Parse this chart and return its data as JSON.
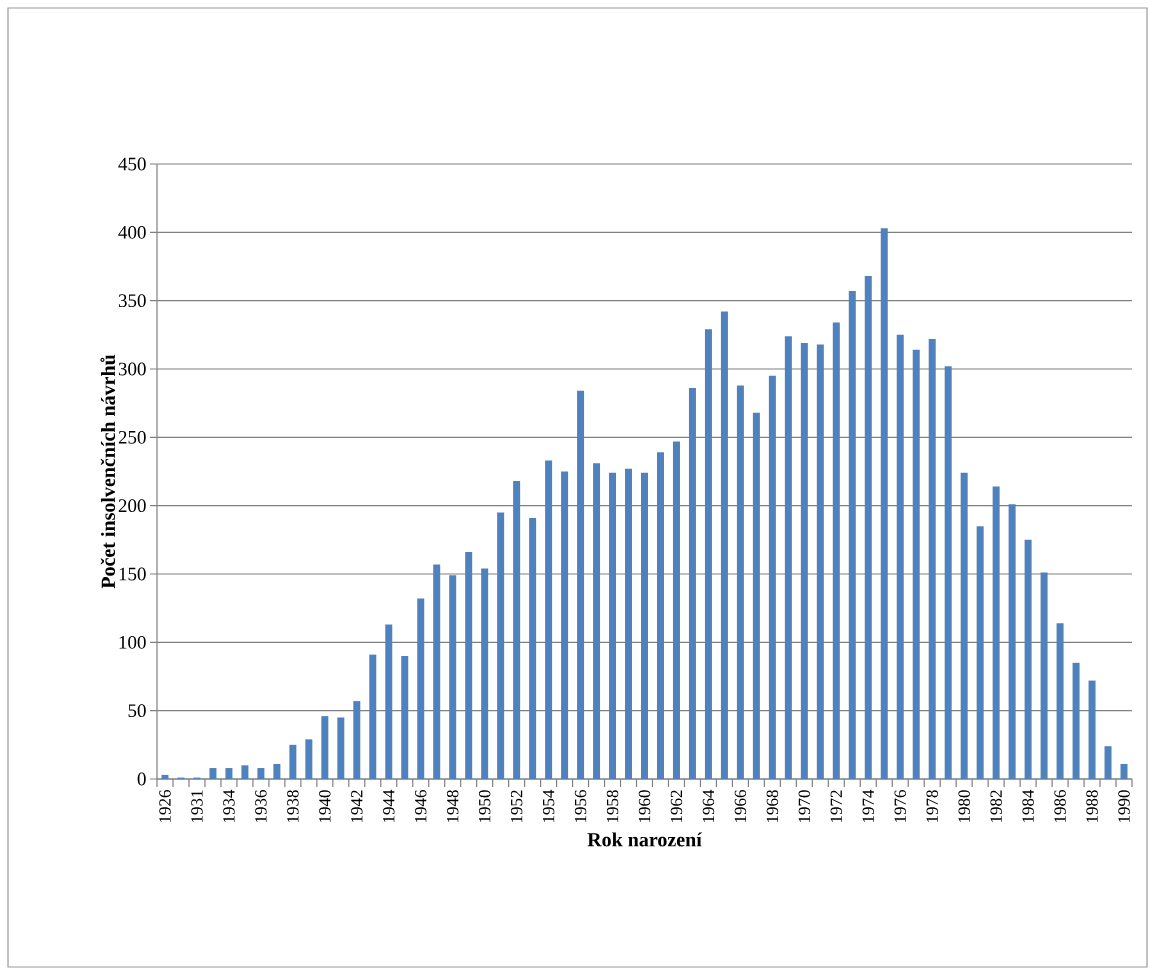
{
  "chart_data": {
    "type": "bar",
    "xlabel": "Rok narození",
    "ylabel": "Počet insolvenčních návrhů",
    "categories": [
      "1926",
      null,
      "1931",
      null,
      "1934",
      null,
      "1936",
      null,
      "1938",
      null,
      "1940",
      null,
      "1942",
      null,
      "1944",
      null,
      "1946",
      null,
      "1948",
      null,
      "1950",
      null,
      "1952",
      null,
      "1954",
      null,
      "1956",
      null,
      "1958",
      null,
      "1960",
      null,
      "1962",
      null,
      "1964",
      null,
      "1966",
      null,
      "1968",
      null,
      "1970",
      null,
      "1972",
      null,
      "1974",
      null,
      "1976",
      null,
      "1978",
      null,
      "1980",
      null,
      "1982",
      null,
      "1984",
      null,
      "1986",
      null,
      "1988",
      null,
      "1990"
    ],
    "values": [
      3,
      1,
      1,
      8,
      8,
      10,
      8,
      11,
      25,
      29,
      46,
      45,
      57,
      91,
      113,
      90,
      132,
      157,
      149,
      166,
      154,
      195,
      218,
      191,
      233,
      225,
      284,
      231,
      224,
      227,
      224,
      239,
      247,
      286,
      329,
      342,
      288,
      268,
      295,
      324,
      319,
      318,
      334,
      357,
      368,
      403,
      325,
      314,
      322,
      302,
      224,
      185,
      214,
      201,
      175,
      151,
      114,
      85,
      72,
      24,
      11
    ],
    "color": "#4f81bd",
    "ylim": [
      0,
      450
    ],
    "yticks": [
      0,
      50,
      100,
      150,
      200,
      250,
      300,
      350,
      400,
      450
    ],
    "grid": "y"
  }
}
